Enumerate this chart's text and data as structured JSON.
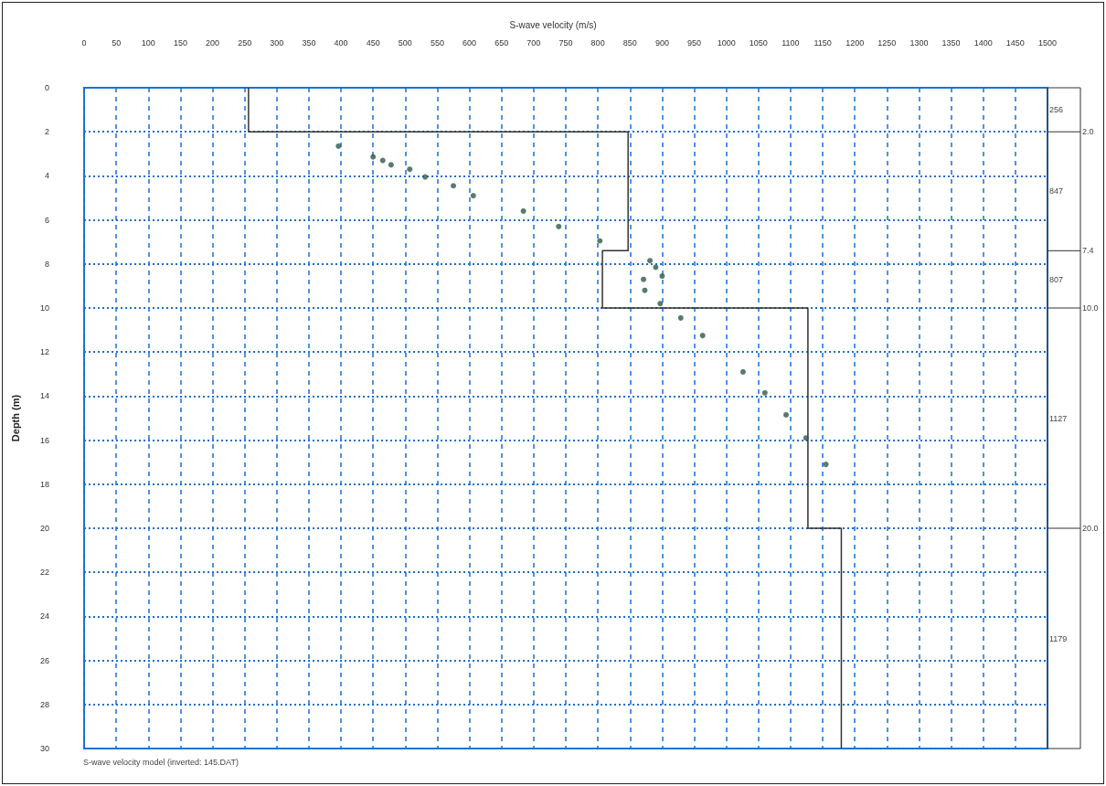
{
  "chart_data": {
    "type": "scatter",
    "title": "S-wave velocity (m/s)",
    "ylabel": "Depth (m)",
    "xlim": [
      0,
      1500
    ],
    "xticks": [
      0,
      50,
      100,
      150,
      200,
      250,
      300,
      350,
      400,
      450,
      500,
      550,
      600,
      650,
      700,
      750,
      800,
      850,
      900,
      950,
      1000,
      1050,
      1100,
      1150,
      1200,
      1250,
      1300,
      1350,
      1400,
      1450,
      1500
    ],
    "ylim": [
      30,
      0
    ],
    "yticks": [
      0,
      2,
      4,
      6,
      8,
      10,
      12,
      14,
      16,
      18,
      20,
      22,
      24,
      26,
      28,
      30
    ],
    "grid": true,
    "series": [
      {
        "type": "line",
        "color": "#333333",
        "x": [
          256,
          256,
          847,
          847,
          807,
          807,
          1127,
          1127,
          1179,
          1179
        ],
        "values": [
          0,
          2,
          2,
          7.4,
          7.4,
          10,
          10,
          20,
          20,
          30
        ]
      },
      {
        "marker": "circle",
        "color": "#2f5a4a",
        "x": [
          396,
          450,
          465,
          478,
          507,
          531,
          575,
          606,
          684,
          739,
          803,
          881,
          890,
          871,
          900,
          873,
          897,
          929,
          963,
          1026,
          1060,
          1093,
          1124,
          1155
        ],
        "values": [
          2.65,
          3.14,
          3.3,
          3.5,
          3.7,
          4.05,
          4.45,
          4.9,
          5.6,
          6.3,
          6.95,
          7.85,
          8.15,
          8.7,
          8.55,
          9.2,
          9.8,
          10.45,
          11.25,
          12.9,
          13.85,
          14.85,
          15.9,
          17.1
        ]
      }
    ],
    "ref_lines": [
      {
        "axis": "y",
        "value": 2,
        "label": "2.0"
      },
      {
        "axis": "y",
        "value": 7.4,
        "label": "7.4"
      },
      {
        "axis": "y",
        "value": 10,
        "label": "10.0"
      },
      {
        "axis": "y",
        "value": 20,
        "label": "20.0"
      }
    ],
    "annotations": [
      "256",
      "847",
      "807",
      "1127",
      "1179",
      "S-wave velocity model (inverted: 145.DAT)"
    ]
  }
}
